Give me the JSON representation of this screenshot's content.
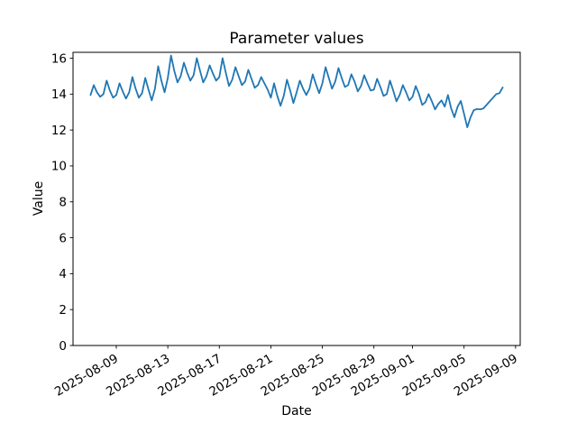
{
  "window": {
    "background": "#ffffff"
  },
  "chart_data": {
    "type": "line",
    "title": "Parameter values",
    "xlabel": "Date",
    "ylabel": "Value",
    "grid": false,
    "legend": null,
    "line_color": "#1f77b4",
    "axis_color": "#000000",
    "ylim": [
      0,
      16.33
    ],
    "y_ticks": [
      0,
      2,
      4,
      6,
      8,
      10,
      12,
      14,
      16
    ],
    "x_ticks": [
      {
        "label": "2025-08-09",
        "day_offset": 2
      },
      {
        "label": "2025-08-13",
        "day_offset": 6
      },
      {
        "label": "2025-08-17",
        "day_offset": 10
      },
      {
        "label": "2025-08-21",
        "day_offset": 14
      },
      {
        "label": "2025-08-25",
        "day_offset": 18
      },
      {
        "label": "2025-08-29",
        "day_offset": 22
      },
      {
        "label": "2025-09-01",
        "day_offset": 25
      },
      {
        "label": "2025-09-05",
        "day_offset": 29
      },
      {
        "label": "2025-09-09",
        "day_offset": 33
      }
    ],
    "series": [
      {
        "name": "Parameter",
        "start_date": "2025-08-07T00:00",
        "step_hours": 6,
        "values": [
          13.95,
          14.5,
          14.1,
          13.85,
          14.0,
          14.75,
          14.2,
          13.8,
          13.95,
          14.6,
          14.15,
          13.75,
          14.1,
          14.95,
          14.3,
          13.8,
          14.05,
          14.9,
          14.25,
          13.65,
          14.3,
          15.55,
          14.75,
          14.1,
          14.9,
          16.15,
          15.3,
          14.65,
          15.0,
          15.75,
          15.2,
          14.75,
          15.05,
          16.0,
          15.3,
          14.65,
          15.0,
          15.6,
          15.15,
          14.75,
          14.95,
          16.0,
          15.2,
          14.45,
          14.8,
          15.5,
          15.0,
          14.5,
          14.7,
          15.35,
          14.85,
          14.35,
          14.5,
          14.95,
          14.6,
          14.25,
          13.8,
          14.6,
          13.9,
          13.35,
          13.9,
          14.8,
          14.2,
          13.5,
          14.1,
          14.75,
          14.3,
          13.95,
          14.3,
          15.1,
          14.55,
          14.05,
          14.6,
          15.5,
          14.9,
          14.3,
          14.7,
          15.45,
          14.9,
          14.4,
          14.5,
          15.1,
          14.7,
          14.15,
          14.45,
          15.05,
          14.6,
          14.2,
          14.25,
          14.85,
          14.4,
          13.9,
          14.0,
          14.75,
          14.2,
          13.6,
          13.95,
          14.5,
          14.1,
          13.65,
          13.85,
          14.45,
          14.0,
          13.4,
          13.55,
          14.0,
          13.6,
          13.15,
          13.45,
          13.65,
          13.3,
          13.95,
          13.2,
          12.71,
          13.3,
          13.62,
          12.9,
          12.15,
          12.7,
          13.1,
          13.17,
          13.15,
          13.2,
          13.4,
          13.6,
          13.8,
          14.0,
          14.05,
          14.37
        ]
      }
    ]
  }
}
